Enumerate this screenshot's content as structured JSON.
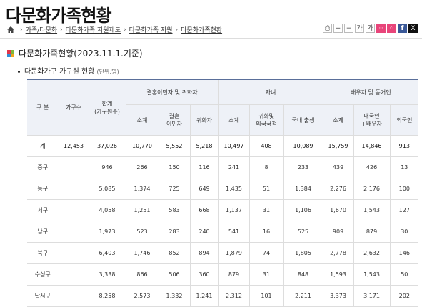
{
  "page": {
    "title": "다문화가족현황"
  },
  "breadcrumb": {
    "items": [
      "가족/다문화",
      "다문화가족 지원제도",
      "다문화가족 지원",
      "다문화가족현황"
    ]
  },
  "toolbar": {
    "print": "⎙",
    "zoom_in": "+",
    "zoom_out": "−",
    "font_small": "가",
    "font_large": "가",
    "share1": "⁘",
    "share2": "⁘",
    "facebook": "f",
    "twitter": "X"
  },
  "section": {
    "title": "다문화가족현황(2023.11.1.기준)",
    "subtitle": "다문화가구 가구원 현황",
    "unit": "(단위:명)"
  },
  "table": {
    "headers": {
      "division": "구 분",
      "households": "가구수",
      "total": "합계\n(가구원수)",
      "group_marriage": "결혼이민자 및 귀화자",
      "group_children": "자녀",
      "group_spouse": "배우자 및 동거인",
      "sub": [
        "소계",
        "결혼\n이민자",
        "귀화자",
        "소계",
        "귀화및\n외국국적",
        "국내 출생",
        "소계",
        "내국인\n+배우자",
        "외국인"
      ]
    },
    "rows": [
      [
        "계",
        "12,453",
        "37,026",
        "10,770",
        "5,552",
        "5,218",
        "10,497",
        "408",
        "10,089",
        "15,759",
        "14,846",
        "913"
      ],
      [
        "중구",
        "",
        "946",
        "266",
        "150",
        "116",
        "241",
        "8",
        "233",
        "439",
        "426",
        "13"
      ],
      [
        "동구",
        "",
        "5,085",
        "1,374",
        "725",
        "649",
        "1,435",
        "51",
        "1,384",
        "2,276",
        "2,176",
        "100"
      ],
      [
        "서구",
        "",
        "4,058",
        "1,251",
        "583",
        "668",
        "1,137",
        "31",
        "1,106",
        "1,670",
        "1,543",
        "127"
      ],
      [
        "남구",
        "",
        "1,973",
        "523",
        "283",
        "240",
        "541",
        "16",
        "525",
        "909",
        "879",
        "30"
      ],
      [
        "북구",
        "",
        "6,403",
        "1,746",
        "852",
        "894",
        "1,879",
        "74",
        "1,805",
        "2,778",
        "2,632",
        "146"
      ],
      [
        "수성구",
        "",
        "3,338",
        "866",
        "506",
        "360",
        "879",
        "31",
        "848",
        "1,593",
        "1,543",
        "50"
      ],
      [
        "달서구",
        "",
        "8,258",
        "2,573",
        "1,332",
        "1,241",
        "2,312",
        "101",
        "2,211",
        "3,373",
        "3,171",
        "202"
      ]
    ]
  }
}
